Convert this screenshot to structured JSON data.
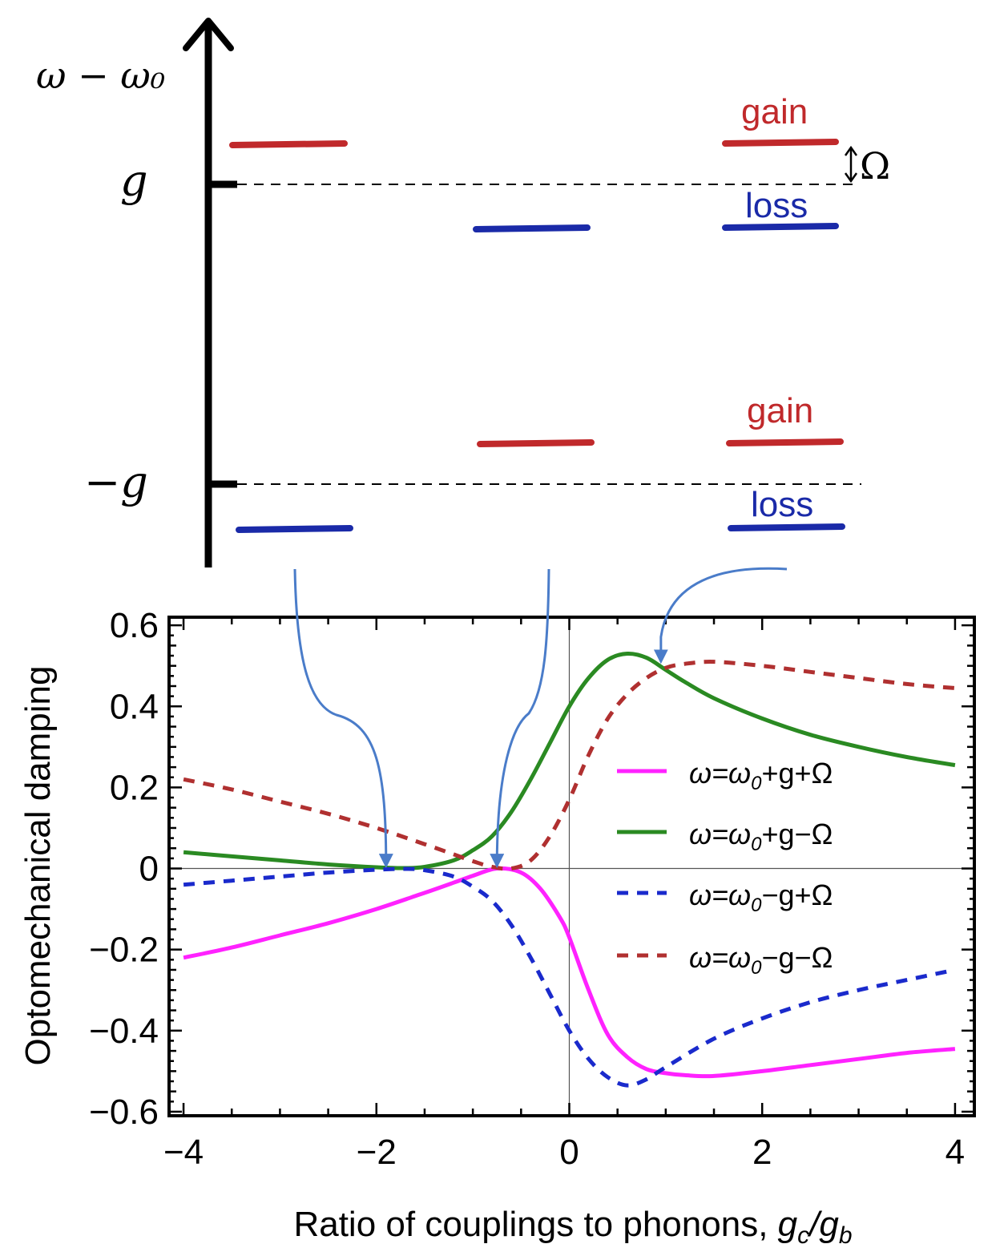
{
  "colors": {
    "gain": "#c0292b",
    "loss": "#1a2aa8",
    "arrow": "#4a7cc9",
    "magenta": "#ff22ff",
    "green": "#2a8a22",
    "blue_dashed": "#1a2acc",
    "red_dashed": "#b03030",
    "axis": "#000000"
  },
  "diagram": {
    "y_axis_label": "ω − ω₀",
    "tick_upper": "g",
    "tick_lower": "−g",
    "label_gain": "gain",
    "label_loss": "loss",
    "omega_label": "Ω",
    "levels": [
      {
        "id": "left-upper",
        "type": "gain"
      },
      {
        "id": "left-lower",
        "type": "loss"
      },
      {
        "id": "middle-upper",
        "type": "loss"
      },
      {
        "id": "middle-lower",
        "type": "gain"
      },
      {
        "id": "right-upper-gain",
        "type": "gain"
      },
      {
        "id": "right-upper-loss",
        "type": "loss"
      },
      {
        "id": "right-lower-gain",
        "type": "gain"
      },
      {
        "id": "right-lower-loss",
        "type": "loss"
      }
    ]
  },
  "chart_data": {
    "type": "line",
    "title": "",
    "xlabel": "Ratio of couplings to phonons, g_c/g_b",
    "xlabel_main": "Ratio of couplings to phonons, ",
    "xlabel_g": "g",
    "xlabel_sub_c": "c",
    "xlabel_slash": "/",
    "xlabel_sub_b": "b",
    "ylabel": "Optomechanical damping",
    "xlim": [
      -4.15,
      4.2
    ],
    "ylim": [
      -0.61,
      0.62
    ],
    "xticks": [
      -4,
      -2,
      0,
      2,
      4
    ],
    "xtick_labels": [
      "−4",
      "−2",
      "0",
      "2",
      "4"
    ],
    "yticks": [
      -0.6,
      -0.4,
      -0.2,
      0,
      0.2,
      0.4,
      0.6
    ],
    "ytick_labels": [
      "−0.6",
      "−0.4",
      "−0.2",
      "0",
      "0.2",
      "0.4",
      "0.6"
    ],
    "legend": [
      {
        "pre": "ω=ω",
        "sub": "0",
        "post": "+g+Ω",
        "series": "magenta"
      },
      {
        "pre": "ω=ω",
        "sub": "0",
        "post": "+g−Ω",
        "series": "green"
      },
      {
        "pre": "ω=ω",
        "sub": "0",
        "post": "−g+Ω",
        "series": "blue"
      },
      {
        "pre": "ω=ω",
        "sub": "0",
        "post": "−g−Ω",
        "series": "red"
      }
    ],
    "series": [
      {
        "name": "ω=ω0+g+Ω",
        "style": "solid",
        "x": [
          -4,
          -3.5,
          -3,
          -2.5,
          -2,
          -1.5,
          -1.2,
          -1,
          -0.75,
          -0.5,
          -0.3,
          -0.1,
          0,
          0.2,
          0.4,
          0.6,
          0.8,
          1,
          1.2,
          1.5,
          2,
          2.5,
          3,
          3.5,
          4
        ],
        "y": [
          -0.22,
          -0.195,
          -0.165,
          -0.135,
          -0.1,
          -0.06,
          -0.035,
          -0.018,
          0.0,
          -0.01,
          -0.05,
          -0.12,
          -0.17,
          -0.3,
          -0.41,
          -0.465,
          -0.495,
          -0.505,
          -0.51,
          -0.512,
          -0.5,
          -0.485,
          -0.47,
          -0.455,
          -0.445
        ]
      },
      {
        "name": "ω=ω0+g−Ω",
        "style": "solid",
        "x": [
          -4,
          -3.5,
          -3,
          -2.5,
          -2,
          -1.7,
          -1.5,
          -1.2,
          -1,
          -0.8,
          -0.6,
          -0.4,
          -0.2,
          0,
          0.2,
          0.4,
          0.6,
          0.8,
          1,
          1.2,
          1.5,
          2,
          2.5,
          3,
          3.5,
          4
        ],
        "y": [
          0.04,
          0.03,
          0.02,
          0.01,
          0.003,
          0.001,
          0.004,
          0.02,
          0.045,
          0.08,
          0.14,
          0.22,
          0.31,
          0.4,
          0.47,
          0.515,
          0.53,
          0.52,
          0.49,
          0.46,
          0.42,
          0.37,
          0.33,
          0.3,
          0.275,
          0.255
        ]
      },
      {
        "name": "ω=ω0−g+Ω",
        "style": "dashed",
        "x": [
          -4,
          -3.5,
          -3,
          -2.5,
          -2,
          -1.7,
          -1.5,
          -1.2,
          -1,
          -0.8,
          -0.6,
          -0.4,
          -0.2,
          0,
          0.2,
          0.4,
          0.6,
          0.8,
          1,
          1.5,
          2,
          2.5,
          3,
          3.5,
          4
        ],
        "y": [
          -0.04,
          -0.03,
          -0.02,
          -0.01,
          -0.003,
          -0.001,
          -0.004,
          -0.02,
          -0.045,
          -0.08,
          -0.14,
          -0.22,
          -0.31,
          -0.4,
          -0.47,
          -0.515,
          -0.535,
          -0.52,
          -0.49,
          -0.42,
          -0.37,
          -0.33,
          -0.3,
          -0.275,
          -0.25
        ]
      },
      {
        "name": "ω=ω0−g−Ω",
        "style": "dashed",
        "x": [
          -4,
          -3.5,
          -3,
          -2.5,
          -2,
          -1.5,
          -1.2,
          -1,
          -0.8,
          -0.6,
          -0.4,
          -0.2,
          0,
          0.2,
          0.4,
          0.6,
          0.8,
          1,
          1.2,
          1.5,
          2,
          2.5,
          3,
          3.5,
          4
        ],
        "y": [
          0.22,
          0.195,
          0.165,
          0.135,
          0.1,
          0.06,
          0.035,
          0.018,
          0.004,
          0.0,
          0.02,
          0.08,
          0.17,
          0.28,
          0.37,
          0.43,
          0.47,
          0.495,
          0.505,
          0.51,
          0.5,
          0.485,
          0.47,
          0.455,
          0.445
        ]
      }
    ],
    "arrow_targets": [
      {
        "x": -1.9,
        "y": 0.0
      },
      {
        "x": -0.75,
        "y": 0.0
      },
      {
        "x": 0.95,
        "y": 0.5
      }
    ]
  }
}
